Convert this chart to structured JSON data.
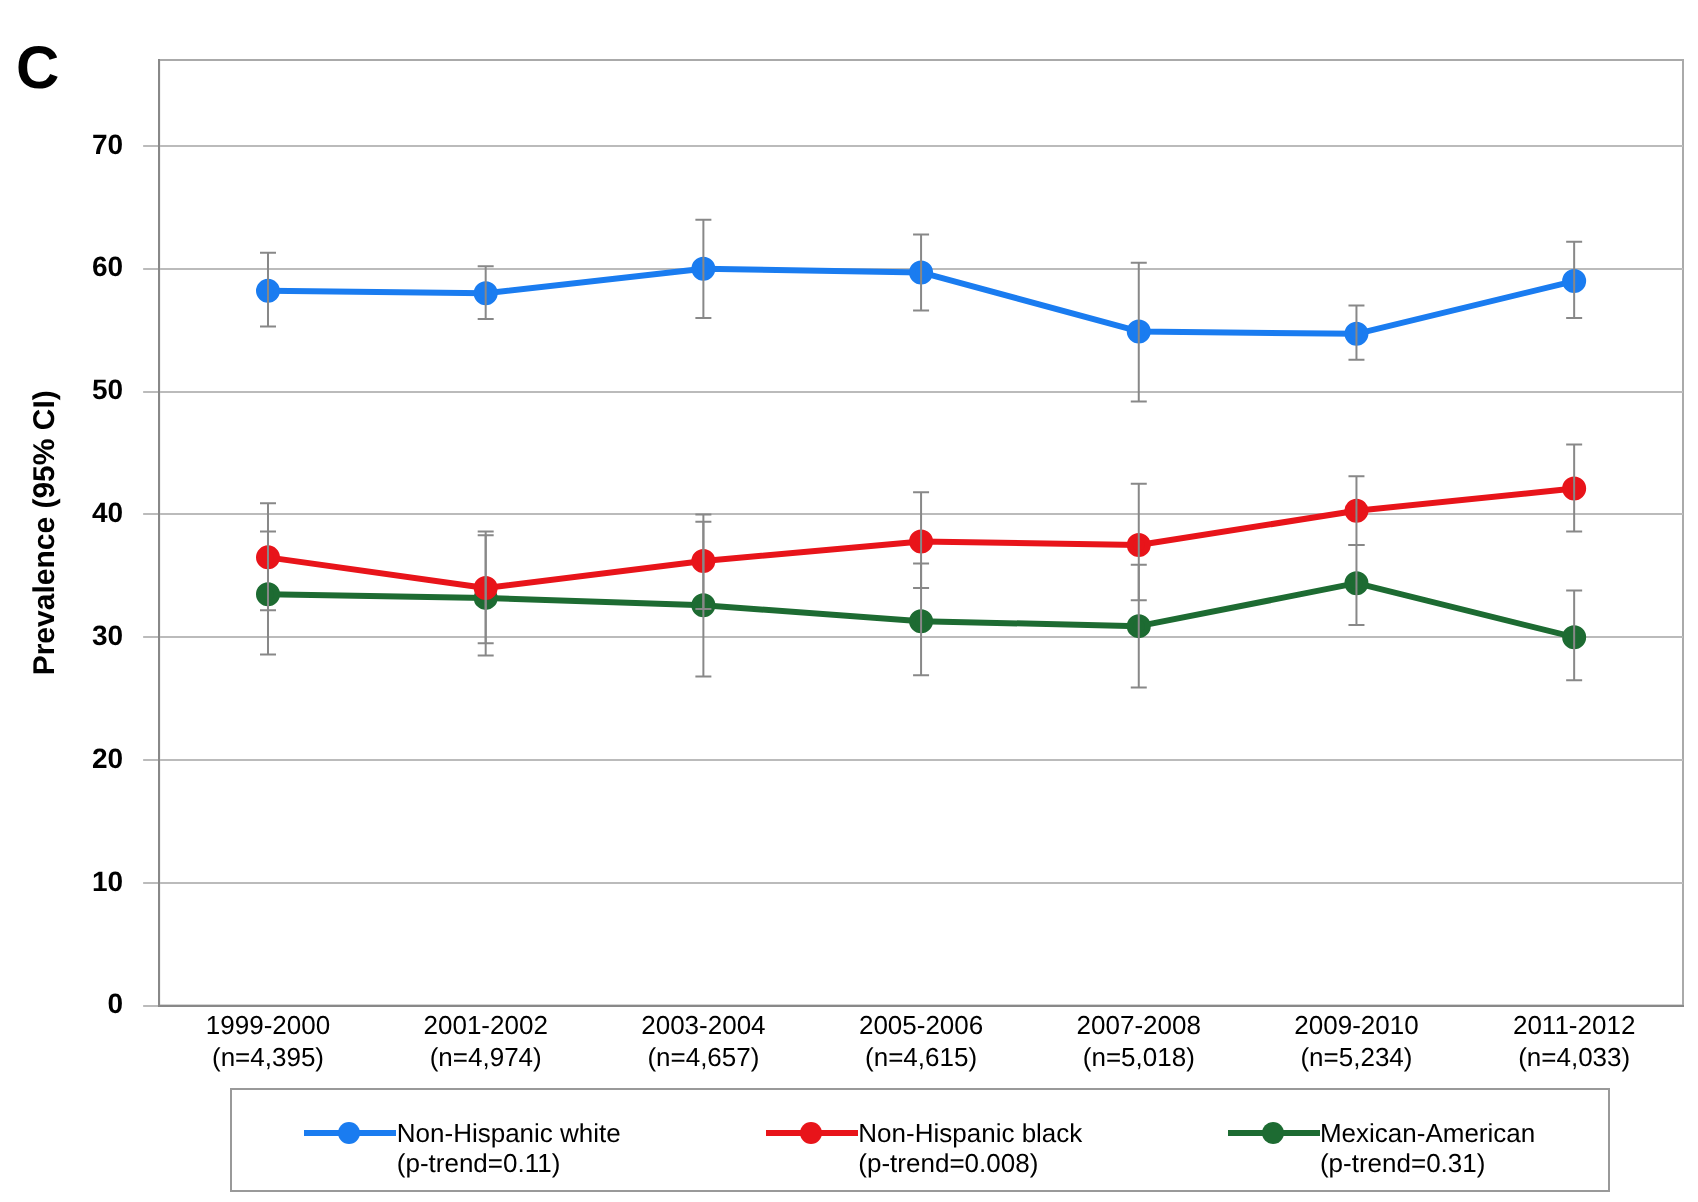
{
  "chart_data": {
    "type": "line",
    "title": "C",
    "ylabel": "Prevalence (95% CI)",
    "categories": [
      "1999-2000\n(n=4,395)",
      "2001-2002\n(n=4,974)",
      "2003-2004\n(n=4,657)",
      "2005-2006\n(n=4,615)",
      "2007-2008\n(n=5,018)",
      "2009-2010\n(n=5,234)",
      "2011-2012\n(n=4,033)"
    ],
    "series": [
      {
        "name": "Non-Hispanic white\n(p-trend=0.11)",
        "color": "#1a7cf0",
        "values": [
          58.2,
          58.0,
          60.0,
          59.7,
          54.9,
          54.7,
          59.0
        ],
        "errors": [
          [
            55.3,
            61.3
          ],
          [
            55.9,
            60.2
          ],
          [
            56,
            64
          ],
          [
            56.6,
            62.8
          ],
          [
            49.2,
            60.5
          ],
          [
            52.6,
            57
          ],
          [
            56,
            62.2
          ]
        ]
      },
      {
        "name": "Non-Hispanic black\n(p-trend=0.008)",
        "color": "#e8141a",
        "values": [
          36.5,
          34.0,
          36.2,
          37.8,
          37.5,
          40.3,
          42.1
        ],
        "errors": [
          [
            32.2,
            40.9
          ],
          [
            29.5,
            38.6
          ],
          [
            32.3,
            40
          ],
          [
            34,
            41.8
          ],
          [
            33,
            42.5
          ],
          [
            37.5,
            43.1
          ],
          [
            38.6,
            45.7
          ]
        ]
      },
      {
        "name": "Mexican-American\n(p-trend=0.31)",
        "color": "#1d6b32",
        "values": [
          33.5,
          33.2,
          32.6,
          31.3,
          30.9,
          34.4,
          30.0
        ],
        "errors": [
          [
            28.6,
            38.6
          ],
          [
            28.5,
            38.3
          ],
          [
            26.8,
            39.4
          ],
          [
            26.9,
            36
          ],
          [
            25.9,
            35.9
          ],
          [
            31,
            37.5
          ],
          [
            26.5,
            33.8
          ]
        ]
      }
    ],
    "ylim": [
      0,
      77
    ],
    "yticks": [
      0,
      10,
      20,
      30,
      40,
      50,
      60,
      70
    ],
    "grid": "y",
    "legend": "bottom",
    "marker": "circle",
    "line_style": "solid"
  }
}
